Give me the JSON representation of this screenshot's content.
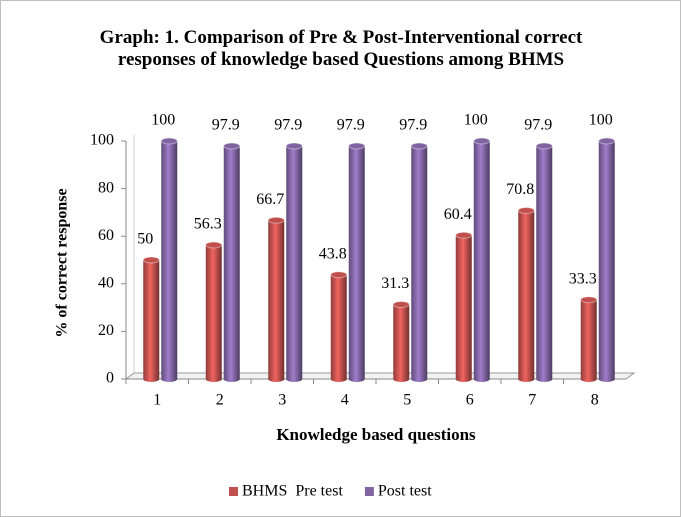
{
  "chart_data": {
    "type": "bar",
    "title": "Graph: 1. Comparison of Pre & Post-Interventional correct responses of knowledge based Questions among BHMS",
    "xlabel": "Knowledge based questions",
    "ylabel": "% of correct response",
    "categories": [
      "1",
      "2",
      "3",
      "4",
      "5",
      "6",
      "7",
      "8"
    ],
    "series": [
      {
        "name": "BHMS  Pre test",
        "color": "#c0504d",
        "values": [
          50,
          56.3,
          66.7,
          43.8,
          31.3,
          60.4,
          70.8,
          33.3
        ]
      },
      {
        "name": "Post test",
        "color": "#8064a2",
        "values": [
          100,
          97.9,
          97.9,
          97.9,
          97.9,
          100,
          97.9,
          100
        ]
      }
    ],
    "ylim": [
      0,
      100
    ],
    "yticks": [
      0,
      20,
      40,
      60,
      80,
      100
    ],
    "grid": false,
    "legend": "bottom"
  }
}
